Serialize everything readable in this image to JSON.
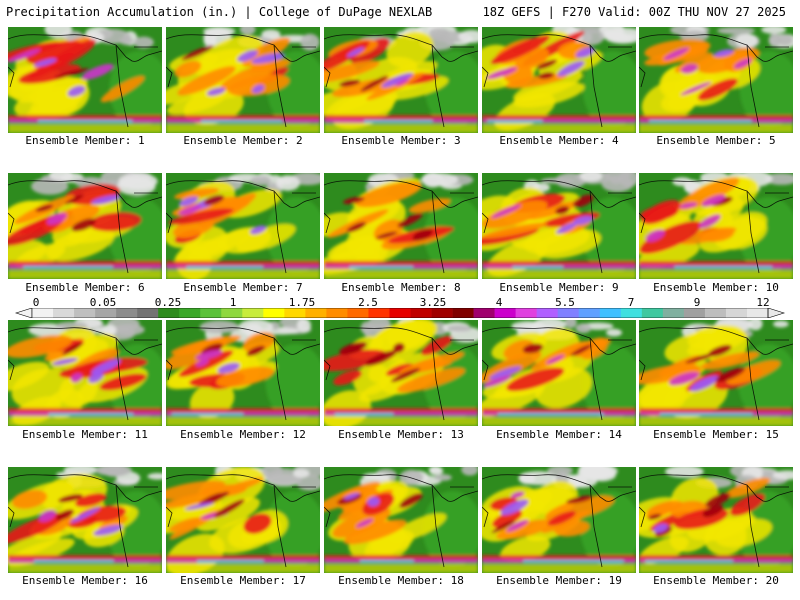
{
  "header": {
    "left_title": "Precipitation Accumulation (in.) | College of DuPage NEXLAB",
    "right_title": "18Z GEFS | F270 Valid: 00Z THU NOV 27 2025"
  },
  "panel_label_prefix": "Ensemble Member: ",
  "members": [
    1,
    2,
    3,
    4,
    5,
    6,
    7,
    8,
    9,
    10,
    11,
    12,
    13,
    14,
    15,
    16,
    17,
    18,
    19,
    20
  ],
  "color_scale": {
    "tick_labels": [
      "0",
      "0.05",
      "0.25",
      "1",
      "1.75",
      "2.5",
      "3.25",
      "4",
      "5.5",
      "7",
      "9",
      "12"
    ],
    "colors": [
      "#f2f2f2",
      "#d9d9d9",
      "#bfbfbf",
      "#a6a6a6",
      "#8c8c8c",
      "#737373",
      "#2e8b1e",
      "#3ba82a",
      "#5cc23a",
      "#8fd83f",
      "#c8ec3c",
      "#ffff00",
      "#ffd800",
      "#ffb000",
      "#ff8c00",
      "#ff6a00",
      "#ff3300",
      "#e60000",
      "#c00000",
      "#a00000",
      "#800000",
      "#a0006e",
      "#cc00cc",
      "#e040e0",
      "#b060ff",
      "#8080ff",
      "#60a0ff",
      "#40c0ff",
      "#40e0e0",
      "#40c8a0",
      "#80b0a0",
      "#a0a0a0",
      "#bdbdbd",
      "#d6d6d6",
      "#e8e8e8"
    ]
  },
  "palette": {
    "ocean_base": "#2e8b1e",
    "land_green": "#3aa526",
    "dry_gray": "#b8b8b8",
    "light_gray": "#e6e6e6",
    "yellow": "#f2e600",
    "orange": "#ff8c00",
    "red": "#e81a1a",
    "dark_red": "#a00010",
    "magenta": "#cc33cc",
    "purple": "#9a5aff",
    "cyan": "#4ad8e8",
    "coast": "#000000"
  }
}
